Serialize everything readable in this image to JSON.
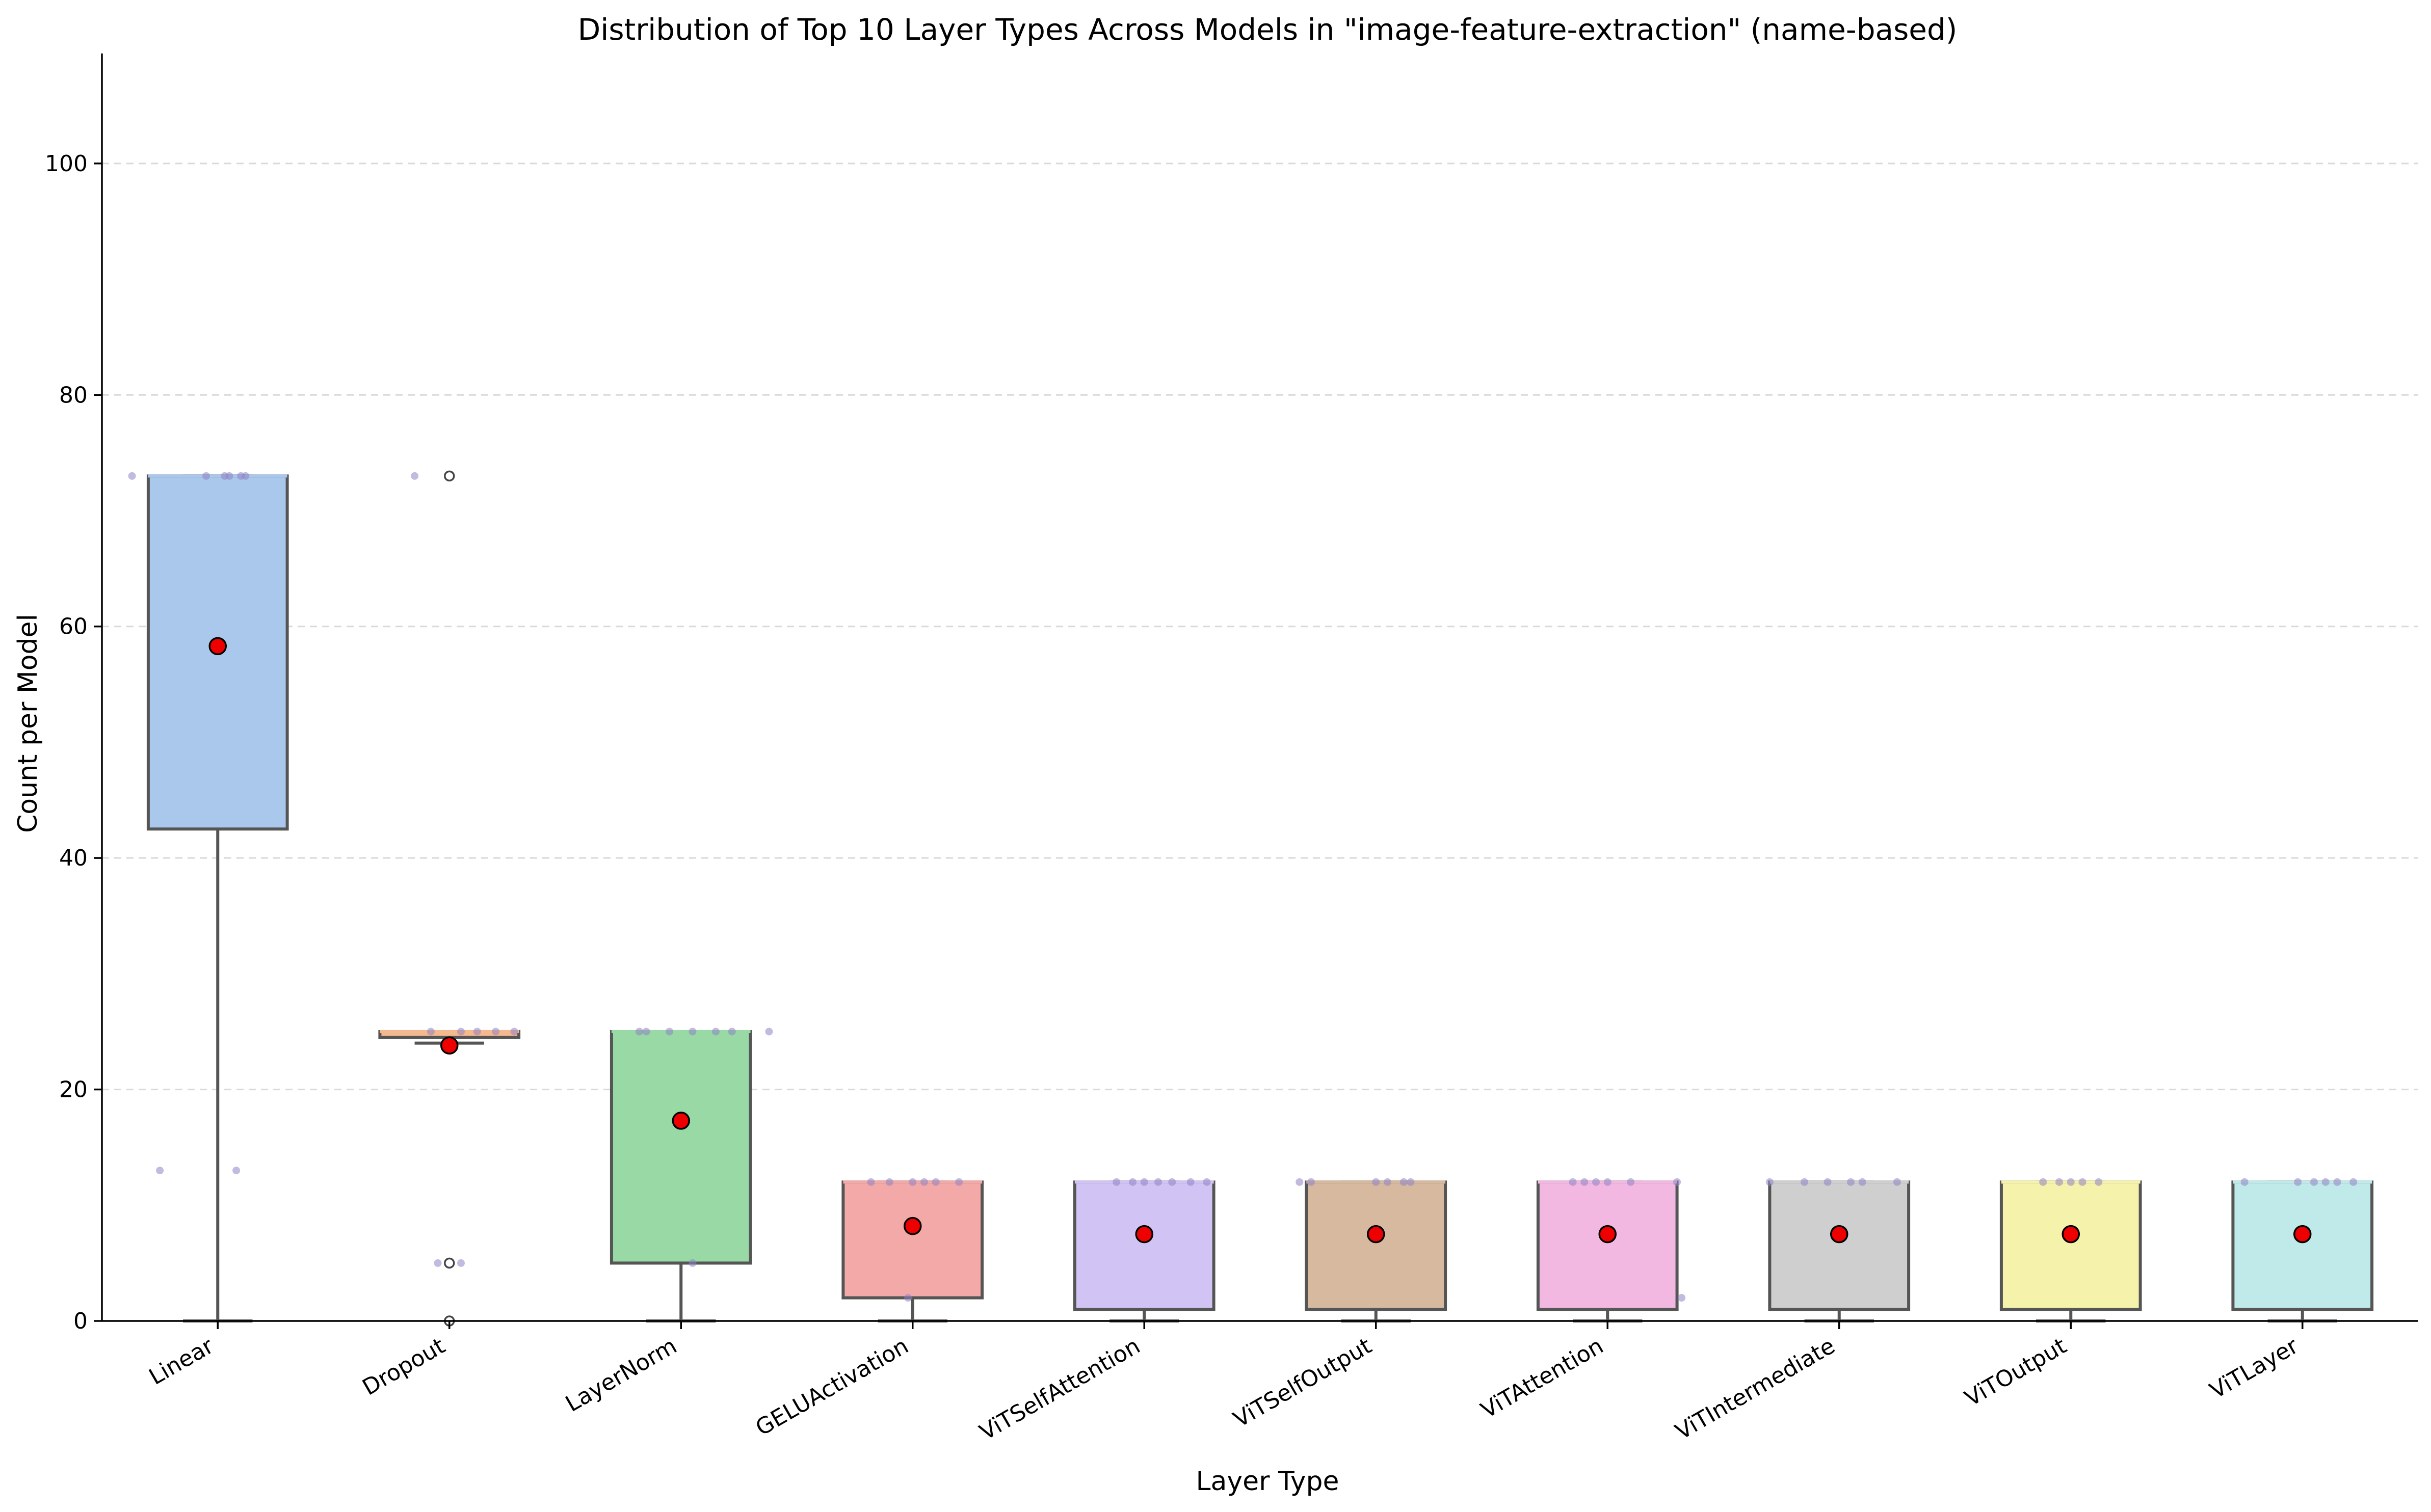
{
  "chart_data": {
    "type": "box",
    "title": "Distribution of Top 10 Layer Types Across Models in \"image-feature-extraction\" (name-based)",
    "xlabel": "Layer Type",
    "ylabel": "Count per Model",
    "ylim": [
      0,
      109.5
    ],
    "yticks": [
      0,
      20,
      40,
      60,
      80,
      100
    ],
    "grid": "y",
    "categories": [
      "Linear",
      "Dropout",
      "LayerNorm",
      "GELUActivation",
      "ViTSelfAttention",
      "ViTSelfOutput",
      "ViTAttention",
      "ViTIntermediate",
      "ViTOutput",
      "ViTLayer"
    ],
    "boxes": [
      {
        "name": "Linear",
        "color": "#a9c8ec",
        "whislo": 0,
        "q1": 42.5,
        "med": 73,
        "q3": 73,
        "whishi": 73,
        "mean": 58.3,
        "fliers": [],
        "points": [
          [
            -0.37,
            73
          ],
          [
            0.03,
            73
          ],
          [
            0.1,
            73
          ],
          [
            -0.25,
            13
          ],
          [
            0.08,
            13
          ],
          [
            0.05,
            73
          ],
          [
            -0.05,
            73
          ],
          [
            0.12,
            73
          ]
        ]
      },
      {
        "name": "Dropout",
        "color": "#f5b98f",
        "whislo": 24,
        "q1": 24.5,
        "med": 25,
        "q3": 25,
        "whishi": 25,
        "mean": 23.8,
        "fliers": [
          73,
          5,
          0
        ],
        "points": [
          [
            -0.15,
            73
          ],
          [
            -0.05,
            5
          ],
          [
            0.05,
            5
          ],
          [
            0.05,
            25
          ],
          [
            -0.08,
            25
          ],
          [
            0.12,
            25
          ],
          [
            0.2,
            25
          ],
          [
            0.28,
            25
          ],
          [
            0.0,
            24
          ]
        ]
      },
      {
        "name": "LayerNorm",
        "color": "#98d9a5",
        "whislo": 0,
        "q1": 5,
        "med": 25,
        "q3": 25,
        "whishi": 25,
        "mean": 17.3,
        "fliers": [],
        "points": [
          [
            -0.15,
            25
          ],
          [
            -0.05,
            25
          ],
          [
            0.05,
            25
          ],
          [
            0.15,
            25
          ],
          [
            0.22,
            25
          ],
          [
            0.38,
            25
          ],
          [
            0.05,
            5
          ],
          [
            -0.18,
            25
          ]
        ]
      },
      {
        "name": "GELUActivation",
        "color": "#f2a9a7",
        "whislo": 0,
        "q1": 2,
        "med": 12,
        "q3": 12,
        "whishi": 12,
        "mean": 8.2,
        "fliers": [],
        "points": [
          [
            -0.18,
            12
          ],
          [
            -0.1,
            12
          ],
          [
            0.0,
            12
          ],
          [
            0.05,
            12
          ],
          [
            0.1,
            12
          ],
          [
            0.2,
            12
          ],
          [
            -0.02,
            2
          ]
        ]
      },
      {
        "name": "ViTSelfAttention",
        "color": "#d1c4f5",
        "whislo": 0,
        "q1": 1,
        "med": 12,
        "q3": 12,
        "whishi": 12,
        "mean": 7.5,
        "fliers": [],
        "points": [
          [
            -0.12,
            12
          ],
          [
            -0.05,
            12
          ],
          [
            0.0,
            12
          ],
          [
            0.06,
            12
          ],
          [
            0.12,
            12
          ],
          [
            0.2,
            12
          ],
          [
            0.27,
            12
          ]
        ]
      },
      {
        "name": "ViTSelfOutput",
        "color": "#d6b99f",
        "whislo": 0,
        "q1": 1,
        "med": 12,
        "q3": 12,
        "whishi": 12,
        "mean": 7.5,
        "fliers": [],
        "points": [
          [
            -0.33,
            12
          ],
          [
            -0.28,
            12
          ],
          [
            0.0,
            12
          ],
          [
            0.05,
            12
          ],
          [
            0.12,
            12
          ],
          [
            0.15,
            12
          ]
        ]
      },
      {
        "name": "ViTAttention",
        "color": "#f2b8e1",
        "whislo": 0,
        "q1": 1,
        "med": 12,
        "q3": 12,
        "whishi": 12,
        "mean": 7.5,
        "fliers": [],
        "points": [
          [
            -0.15,
            12
          ],
          [
            -0.1,
            12
          ],
          [
            -0.05,
            12
          ],
          [
            0.0,
            12
          ],
          [
            0.1,
            12
          ],
          [
            0.3,
            12
          ],
          [
            0.32,
            2
          ]
        ]
      },
      {
        "name": "ViTIntermediate",
        "color": "#cfcfcf",
        "whislo": 0,
        "q1": 1,
        "med": 12,
        "q3": 12,
        "whishi": 12,
        "mean": 7.5,
        "fliers": [],
        "points": [
          [
            -0.3,
            12
          ],
          [
            -0.15,
            12
          ],
          [
            -0.05,
            12
          ],
          [
            0.05,
            12
          ],
          [
            0.1,
            12
          ],
          [
            0.25,
            12
          ]
        ]
      },
      {
        "name": "ViTOutput",
        "color": "#f5f2ab",
        "whislo": 0,
        "q1": 1,
        "med": 12,
        "q3": 12,
        "whishi": 12,
        "mean": 7.5,
        "fliers": [],
        "points": [
          [
            -0.12,
            12
          ],
          [
            -0.05,
            12
          ],
          [
            0.0,
            12
          ],
          [
            0.05,
            12
          ],
          [
            0.12,
            12
          ]
        ]
      },
      {
        "name": "ViTLayer",
        "color": "#c0e9e9",
        "whislo": 0,
        "q1": 1,
        "med": 12,
        "q3": 12,
        "whishi": 12,
        "mean": 7.5,
        "fliers": [],
        "points": [
          [
            -0.25,
            12
          ],
          [
            -0.02,
            12
          ],
          [
            0.05,
            12
          ],
          [
            0.1,
            12
          ],
          [
            0.15,
            12
          ],
          [
            0.22,
            12
          ]
        ]
      }
    ]
  }
}
